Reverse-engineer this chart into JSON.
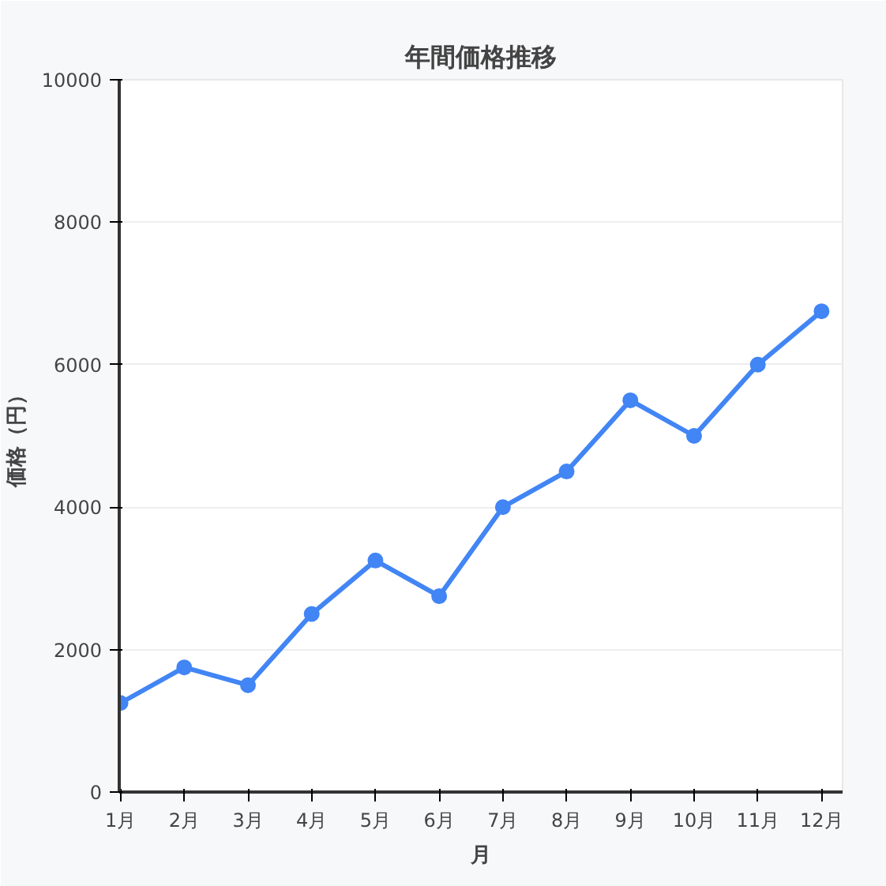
{
  "chart_data": {
    "type": "line",
    "title": "年間価格推移",
    "xlabel": "月",
    "ylabel": "価格（円）",
    "categories": [
      "1月",
      "2月",
      "3月",
      "4月",
      "5月",
      "6月",
      "7月",
      "8月",
      "9月",
      "10月",
      "11月",
      "12月"
    ],
    "series": [
      {
        "color": "#4285f4",
        "values": [
          1250,
          1750,
          1500,
          2500,
          3250,
          2750,
          4000,
          4500,
          5500,
          5000,
          6000,
          6750
        ]
      }
    ],
    "ylim": [
      0,
      10000
    ],
    "yticks": [
      0,
      2000,
      4000,
      6000,
      8000,
      10000
    ],
    "grid": "y",
    "marker": "circle",
    "line_style": "solid"
  }
}
